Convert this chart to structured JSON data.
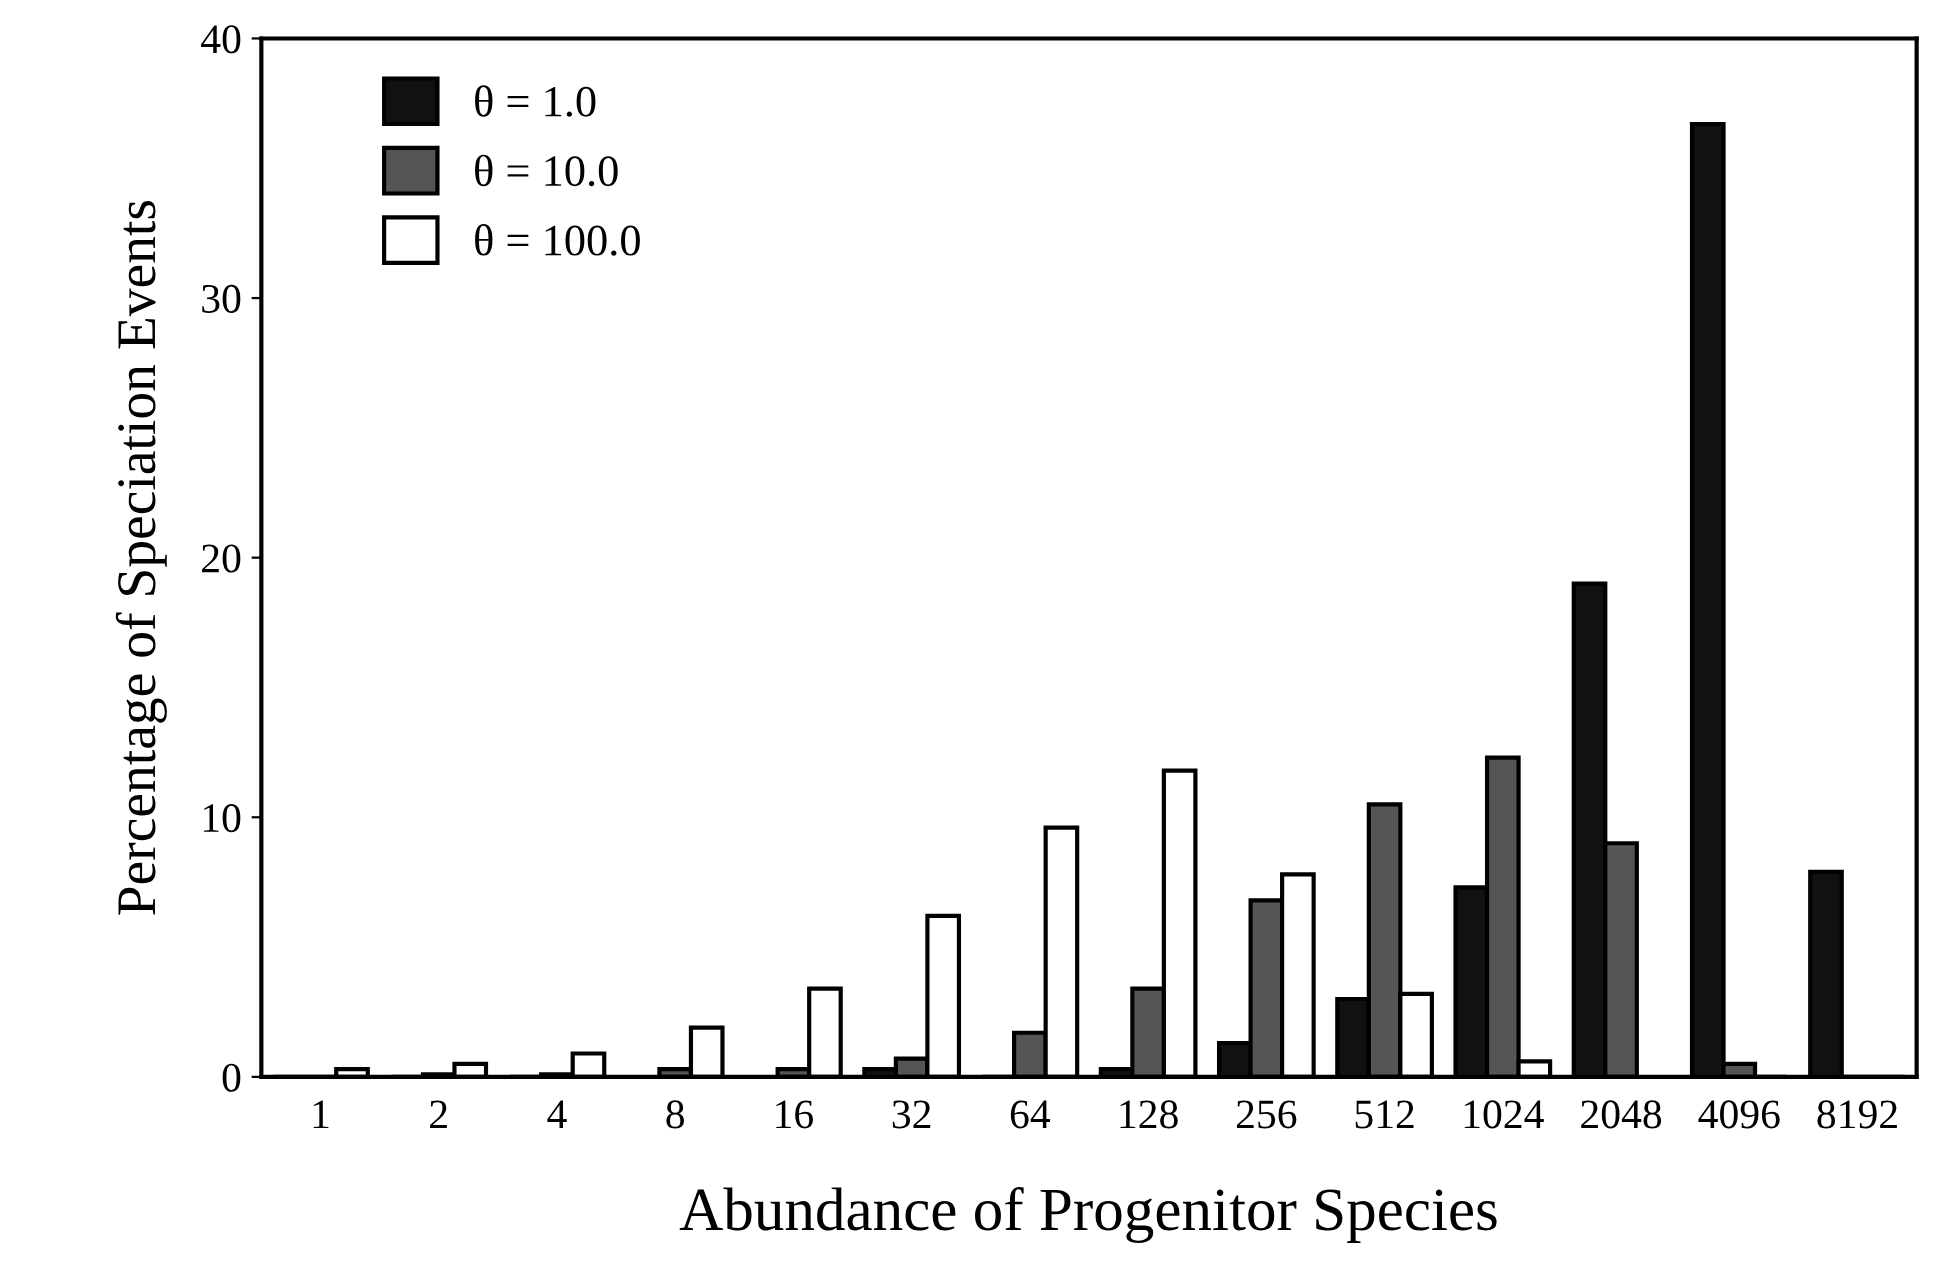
{
  "chart_data": {
    "type": "bar",
    "xlabel": "Abundance of Progenitor Species",
    "ylabel": "Percentage of Speciation Events",
    "categories": [
      "1",
      "2",
      "4",
      "8",
      "16",
      "32",
      "64",
      "128",
      "256",
      "512",
      "1024",
      "2048",
      "4096",
      "8192"
    ],
    "series": [
      {
        "name": "θ = 1.0",
        "color": "#111111",
        "values": [
          0,
          0,
          0,
          null,
          null,
          0.3,
          0,
          0.3,
          1.3,
          3.0,
          7.3,
          19.0,
          36.7,
          7.9
        ]
      },
      {
        "name": "θ = 10.0",
        "color": "#555555",
        "values": [
          0,
          0.1,
          0.1,
          0.3,
          0.3,
          0.7,
          1.7,
          3.4,
          6.8,
          10.5,
          12.3,
          9.0,
          0.5,
          0
        ]
      },
      {
        "name": "θ = 100.0",
        "color": "#ffffff",
        "values": [
          0.3,
          0.5,
          0.9,
          1.9,
          3.4,
          6.2,
          9.6,
          11.8,
          7.8,
          3.2,
          0.6,
          null,
          0,
          0
        ]
      }
    ],
    "ylim": [
      0,
      40
    ],
    "yticks": [
      0,
      10,
      20,
      30,
      40
    ],
    "grid": false,
    "legend": "top left"
  }
}
